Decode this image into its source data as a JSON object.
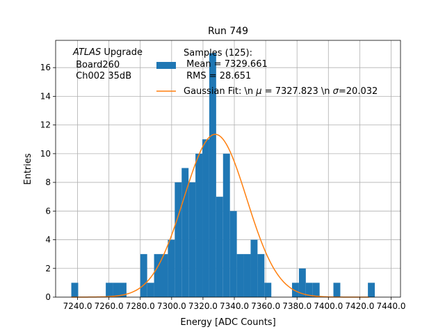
{
  "chart_data": {
    "type": "bar",
    "title": "Run 749",
    "xlabel": "Energy [ADC Counts]",
    "ylabel": "Entries",
    "xlim": [
      7226,
      7446
    ],
    "ylim": [
      0,
      17.9
    ],
    "grid": true,
    "x_ticks": [
      7240,
      7260,
      7280,
      7300,
      7320,
      7340,
      7360,
      7380,
      7400,
      7420,
      7440
    ],
    "x_tick_labels": [
      "7240.0",
      "7260.0",
      "7280.0",
      "7300.0",
      "7320.0",
      "7340.0",
      "7360.0",
      "7380.0",
      "7400.0",
      "7420.0",
      "7440.0"
    ],
    "y_ticks": [
      0,
      2,
      4,
      6,
      8,
      10,
      12,
      14,
      16
    ],
    "y_tick_labels": [
      "0",
      "2",
      "4",
      "6",
      "8",
      "10",
      "12",
      "14",
      "16"
    ],
    "bin_width": 4.4,
    "histogram": [
      {
        "x": 7236,
        "count": 1
      },
      {
        "x": 7258,
        "count": 1
      },
      {
        "x": 7262.4,
        "count": 1
      },
      {
        "x": 7266.8,
        "count": 1
      },
      {
        "x": 7280,
        "count": 3
      },
      {
        "x": 7284.4,
        "count": 1
      },
      {
        "x": 7288.8,
        "count": 3
      },
      {
        "x": 7293.2,
        "count": 3
      },
      {
        "x": 7297.6,
        "count": 4
      },
      {
        "x": 7302,
        "count": 8
      },
      {
        "x": 7306.4,
        "count": 9
      },
      {
        "x": 7310.8,
        "count": 8
      },
      {
        "x": 7315.2,
        "count": 10
      },
      {
        "x": 7319.6,
        "count": 11
      },
      {
        "x": 7324,
        "count": 17
      },
      {
        "x": 7328.4,
        "count": 7
      },
      {
        "x": 7332.8,
        "count": 10
      },
      {
        "x": 7337.2,
        "count": 6
      },
      {
        "x": 7341.6,
        "count": 3
      },
      {
        "x": 7346,
        "count": 3
      },
      {
        "x": 7350.4,
        "count": 4
      },
      {
        "x": 7354.8,
        "count": 3
      },
      {
        "x": 7359.2,
        "count": 1
      },
      {
        "x": 7376.8,
        "count": 1
      },
      {
        "x": 7381.2,
        "count": 2
      },
      {
        "x": 7385.6,
        "count": 1
      },
      {
        "x": 7390,
        "count": 1
      },
      {
        "x": 7403.2,
        "count": 1
      },
      {
        "x": 7425.2,
        "count": 1
      }
    ],
    "fit": {
      "type": "gaussian",
      "mu": 7327.823,
      "sigma": 20.032,
      "amplitude": 11.35,
      "x_range": [
        7236,
        7426
      ]
    },
    "series_colors": {
      "hist": "#1f77b4",
      "fit": "#ff7f0e"
    },
    "legend": {
      "placement": "top-center",
      "hist_label_lines": [
        "Samples (125):",
        " Mean = 7329.661",
        " RMS = 28.651"
      ],
      "fit_label_prefix": "Gaussian Fit: \\n ",
      "fit_label_mu": "μ",
      "fit_label_middle": " = 7327.823 \\n ",
      "fit_label_sigma": "σ",
      "fit_label_suffix": "=20.032"
    },
    "annotation": {
      "italic_part": "ATLAS",
      "rest": " Upgrade",
      "line2": " Board260",
      "line3": " Ch002 35dB"
    }
  }
}
